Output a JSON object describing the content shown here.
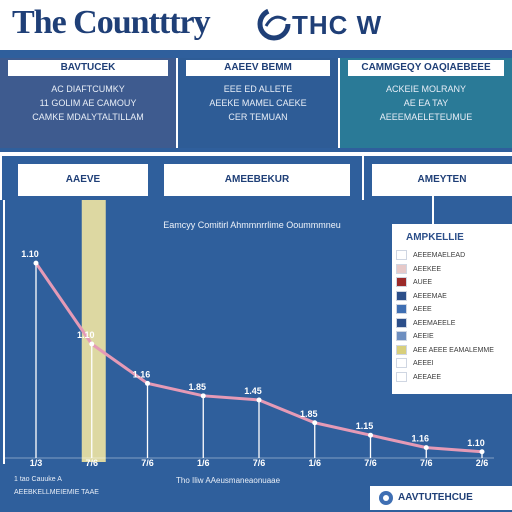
{
  "header": {
    "title": "The Countttry",
    "brand": "THC W"
  },
  "panels": [
    {
      "title": "BAVTUCEK",
      "lines": [
        "AC DIAFTCUMKY",
        "11 GOLIM AE CAMOUY",
        "CAMKE MDALYTALTILLAM"
      ]
    },
    {
      "title": "AAEEV BEMM",
      "lines": [
        "EEE ED ALLETE",
        "AEEKE MAMEL CAEKE",
        "CER TEMUAN"
      ]
    },
    {
      "title": "CAMMGEQY OAQIAEBEEE",
      "lines": [
        "ACKEIE MOLRANY",
        "AE EA TAY",
        "AEEEMAELETEUMUE"
      ]
    }
  ],
  "sections": [
    "AAEVE",
    "AMEEBEKUR",
    "AMEYTEN"
  ],
  "chart_data": {
    "type": "line",
    "title": "Eamcyy Comitirl Ahmmnrrlime Ooummmneu",
    "x": [
      "1/3",
      "7/6",
      "7/6",
      "1/6",
      "7/6",
      "1/6",
      "7/6",
      "7/6",
      "2/6"
    ],
    "series": [
      {
        "values": [
          9.4,
          5.5,
          3.6,
          3.0,
          2.8,
          1.7,
          1.1,
          0.5,
          0.3
        ]
      }
    ],
    "point_labels": [
      "1.10",
      "1.10",
      "1.16",
      "1.85",
      "1.45",
      "1.85",
      "1.15",
      "1.16",
      "1.10"
    ],
    "ylim": [
      0,
      11
    ],
    "highlight_band_index": 1,
    "colors": {
      "line": "#e59ab6",
      "band": "#f1e6a3",
      "axis": "#ffffff"
    }
  },
  "legend": {
    "title": "AMPKELLIE",
    "items": [
      {
        "label": "AEEEMAELEAD",
        "color": "#ffffff"
      },
      {
        "label": "AEEKEE",
        "color": "#e6c9c9"
      },
      {
        "label": "AUEE",
        "color": "#9b2a2a"
      },
      {
        "label": "AEEEMAE",
        "color": "#2c4f8a"
      },
      {
        "label": "AEEE",
        "color": "#3f6fb3"
      },
      {
        "label": "AEEMAEELE",
        "color": "#2c4f8a"
      },
      {
        "label": "AEEIE",
        "color": "#6e8fc0"
      },
      {
        "label": "AEE AEEE EAMALEMME",
        "color": "#d8cf7c"
      },
      {
        "label": "AEEEI",
        "color": "#ffffff"
      },
      {
        "label": "AEEAEE",
        "color": "#ffffff"
      }
    ]
  },
  "footer": {
    "note": "1 tao Cauuke A",
    "note2": "AEEBKELLMEIEMIE TAAE",
    "source": "Tho Iliw AAeusmaneaonuaae",
    "brand": "AAVTUTEHCUE"
  }
}
